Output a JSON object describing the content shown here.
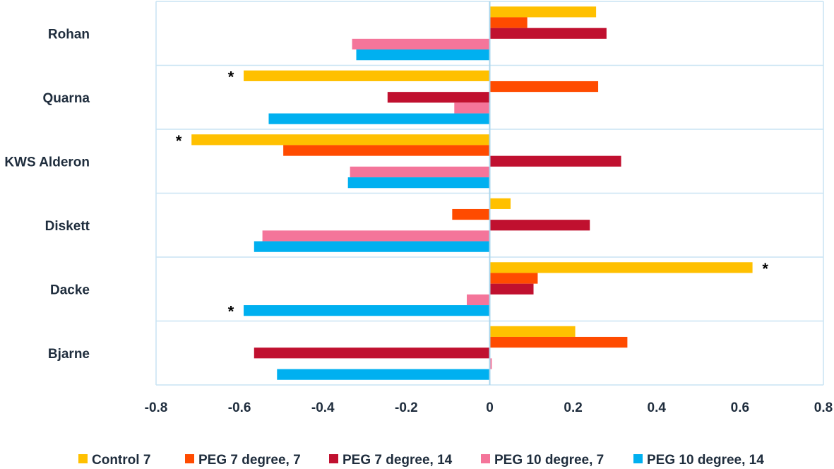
{
  "chart_data": {
    "type": "bar",
    "orientation": "horizontal",
    "title": "",
    "xlabel": "",
    "ylabel": "",
    "xlim": [
      -0.8,
      0.8
    ],
    "xticks": [
      -0.8,
      -0.6,
      -0.4,
      -0.2,
      0,
      0.2,
      0.4,
      0.6,
      0.8
    ],
    "xtick_labels": [
      "-0.8",
      "-0.6",
      "-0.4",
      "-0.2",
      "0",
      "0.2",
      "0.4",
      "0.6",
      "0.8"
    ],
    "grid": true,
    "legend_position": "bottom",
    "categories": [
      "Rohan",
      "Quarna",
      "KWS Alderon",
      "Diskett",
      "Dacke",
      "Bjarne"
    ],
    "series": [
      {
        "name": "Control  7",
        "color": "#FFC000",
        "values": [
          0.255,
          -0.59,
          -0.715,
          0.05,
          0.63,
          0.205
        ]
      },
      {
        "name": "PEG 7 degree, 7",
        "color": "#FF4B00",
        "values": [
          0.09,
          0.26,
          -0.495,
          -0.09,
          0.115,
          0.33
        ]
      },
      {
        "name": "PEG 7 degree, 14",
        "color": "#C0102F",
        "values": [
          0.28,
          -0.245,
          0.315,
          0.24,
          0.105,
          -0.565
        ]
      },
      {
        "name": "PEG 10 degree, 7",
        "color": "#F4759A",
        "values": [
          -0.33,
          -0.085,
          -0.335,
          -0.545,
          -0.055,
          0.005
        ]
      },
      {
        "name": "PEG 10 degree, 14",
        "color": "#00B0F0",
        "values": [
          -0.32,
          -0.53,
          -0.34,
          -0.565,
          -0.59,
          -0.51
        ]
      }
    ],
    "annotations": [
      {
        "text": "*",
        "category": "Quarna",
        "series": 0
      },
      {
        "text": "*",
        "category": "KWS Alderon",
        "series": 0
      },
      {
        "text": "*",
        "category": "Dacke",
        "series": 0
      },
      {
        "text": "*",
        "category": "Dacke",
        "series": 4
      }
    ]
  }
}
